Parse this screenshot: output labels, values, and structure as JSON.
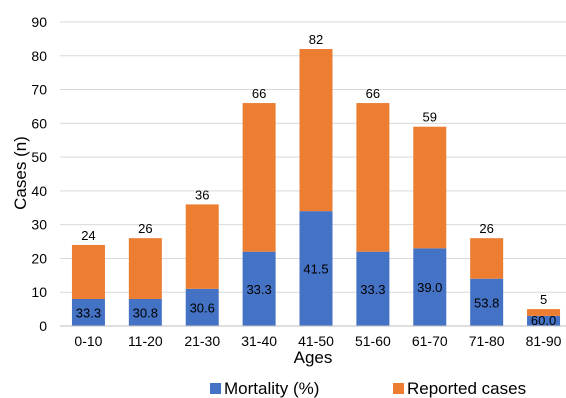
{
  "chart_data": {
    "type": "bar",
    "stacked": true,
    "categories": [
      "0-10",
      "11-20",
      "21-30",
      "31-40",
      "41-50",
      "51-60",
      "61-70",
      "71-80",
      "81-90"
    ],
    "series": [
      {
        "name": "Mortality (%)",
        "color": "#4472c4",
        "values": [
          8,
          8,
          11,
          22,
          34,
          22,
          23,
          14,
          3
        ],
        "data_labels": [
          "33.3",
          "30.8",
          "30.6",
          "33.3",
          "41.5",
          "33.3",
          "39.0",
          "53.8",
          "60.0"
        ]
      },
      {
        "name": "Reported cases",
        "color": "#ed7d31",
        "values": [
          16,
          18,
          25,
          44,
          48,
          44,
          36,
          12,
          2
        ]
      }
    ],
    "totals": [
      24,
      26,
      36,
      66,
      82,
      66,
      59,
      26,
      5
    ],
    "total_labels": [
      "24",
      "26",
      "36",
      "66",
      "82",
      "66",
      "59",
      "26",
      "5"
    ],
    "xlabel": "Ages",
    "ylabel": "Cases (n)",
    "ylim": [
      0,
      90
    ],
    "yticks": [
      0,
      10,
      20,
      30,
      40,
      50,
      60,
      70,
      80,
      90
    ],
    "ytick_labels": [
      "0",
      "10",
      "20",
      "30",
      "40",
      "50",
      "60",
      "70",
      "80",
      "90"
    ],
    "grid": true,
    "legend_position": "bottom"
  }
}
